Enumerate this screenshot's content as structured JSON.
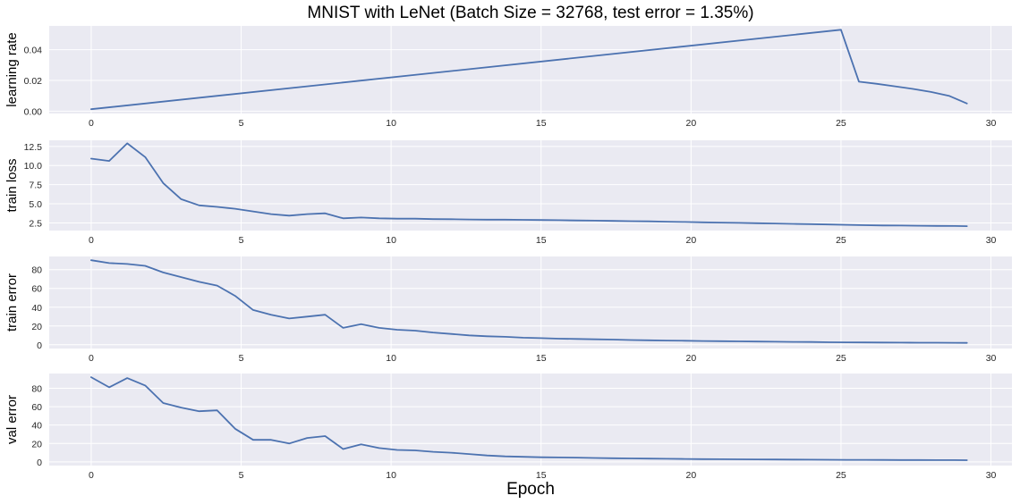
{
  "chart_data": {
    "type": "line",
    "title": "MNIST with LeNet (Batch Size = 32768, test error = 1.35%)",
    "xlabel": "Epoch",
    "xlim": [
      -1.4,
      30.7
    ],
    "xticks": [
      0,
      5,
      10,
      15,
      20,
      25,
      30
    ],
    "x_tick_labels": [
      "0",
      "5",
      "10",
      "15",
      "20",
      "25",
      "30"
    ],
    "grid": true,
    "style": "seaborn-darkgrid",
    "line_color": "#4c72b0",
    "panels": [
      {
        "ylabel": "learning rate",
        "ylim": [
          -0.0015,
          0.0555
        ],
        "yticks": [
          0.0,
          0.02,
          0.04
        ],
        "y_tick_labels": [
          "0.00",
          "0.02",
          "0.04"
        ],
        "x": [
          0,
          25,
          25.6,
          26.2,
          26.8,
          27.4,
          28.0,
          28.6,
          29.2
        ],
        "values": [
          0.0013,
          0.053,
          0.0192,
          0.0178,
          0.0162,
          0.0145,
          0.0125,
          0.01,
          0.005
        ]
      },
      {
        "ylabel": "train loss",
        "ylim": [
          1.5,
          13.3
        ],
        "yticks": [
          2.5,
          5.0,
          7.5,
          10.0,
          12.5
        ],
        "y_tick_labels": [
          "2.5",
          "5.0",
          "7.5",
          "10.0",
          "12.5"
        ],
        "x": [
          0,
          0.6,
          1.2,
          1.8,
          2.4,
          3.0,
          3.6,
          4.2,
          4.8,
          5.4,
          6.0,
          6.6,
          7.2,
          7.8,
          8.4,
          9.0,
          9.6,
          10.2,
          10.8,
          11.4,
          12.0,
          12.6,
          13.2,
          13.8,
          14.4,
          15.0,
          15.6,
          16.2,
          16.8,
          17.4,
          18.0,
          18.6,
          19.2,
          19.8,
          20.4,
          21.0,
          21.6,
          22.2,
          22.8,
          23.4,
          24.0,
          24.6,
          25.2,
          25.8,
          26.4,
          27.0,
          27.6,
          28.2,
          28.8,
          29.2
        ],
        "values": [
          10.9,
          10.6,
          12.9,
          11.1,
          7.7,
          5.6,
          4.8,
          4.6,
          4.35,
          4.0,
          3.65,
          3.45,
          3.65,
          3.75,
          3.1,
          3.2,
          3.1,
          3.05,
          3.05,
          3.0,
          2.98,
          2.95,
          2.92,
          2.92,
          2.9,
          2.88,
          2.85,
          2.82,
          2.8,
          2.76,
          2.73,
          2.7,
          2.66,
          2.62,
          2.58,
          2.54,
          2.5,
          2.46,
          2.42,
          2.38,
          2.34,
          2.3,
          2.25,
          2.2,
          2.17,
          2.15,
          2.13,
          2.11,
          2.09,
          2.07
        ]
      },
      {
        "ylabel": "train error",
        "ylim": [
          -4,
          94
        ],
        "yticks": [
          0,
          20,
          40,
          60,
          80
        ],
        "y_tick_labels": [
          "0",
          "20",
          "40",
          "60",
          "80"
        ],
        "x": [
          0,
          0.6,
          1.2,
          1.8,
          2.4,
          3.0,
          3.6,
          4.2,
          4.8,
          5.4,
          6.0,
          6.6,
          7.2,
          7.8,
          8.4,
          9.0,
          9.6,
          10.2,
          10.8,
          11.4,
          12.0,
          12.6,
          13.2,
          13.8,
          14.4,
          15.0,
          15.6,
          16.2,
          16.8,
          17.4,
          18.0,
          18.6,
          19.2,
          19.8,
          20.4,
          21.0,
          21.6,
          22.2,
          22.8,
          23.4,
          24.0,
          24.6,
          25.2,
          25.8,
          26.4,
          27.0,
          27.6,
          28.2,
          28.8,
          29.2
        ],
        "values": [
          90,
          87,
          86,
          84,
          77,
          72,
          67,
          63,
          52,
          37,
          32,
          28,
          30,
          32,
          18,
          22,
          18,
          16,
          15,
          13,
          11.5,
          10,
          9,
          8.5,
          7.5,
          7,
          6.5,
          6.2,
          5.8,
          5.5,
          5,
          4.8,
          4.5,
          4.3,
          4,
          3.8,
          3.6,
          3.4,
          3.2,
          3,
          2.9,
          2.7,
          2.6,
          2.5,
          2.4,
          2.3,
          2.2,
          2.2,
          2.1,
          2.0
        ]
      },
      {
        "ylabel": "val error",
        "ylim": [
          -4,
          96
        ],
        "yticks": [
          0,
          20,
          40,
          60,
          80
        ],
        "y_tick_labels": [
          "0",
          "20",
          "40",
          "60",
          "80"
        ],
        "x": [
          0,
          0.6,
          1.2,
          1.8,
          2.4,
          3.0,
          3.6,
          4.2,
          4.8,
          5.4,
          6.0,
          6.6,
          7.2,
          7.8,
          8.4,
          9.0,
          9.6,
          10.2,
          10.8,
          11.4,
          12.0,
          12.6,
          13.2,
          13.8,
          14.4,
          15.0,
          15.6,
          16.2,
          16.8,
          17.4,
          18.0,
          18.6,
          19.2,
          19.8,
          20.4,
          21.0,
          21.6,
          22.2,
          22.8,
          23.4,
          24.0,
          24.6,
          25.2,
          25.8,
          26.4,
          27.0,
          27.6,
          28.2,
          28.8,
          29.2
        ],
        "values": [
          92,
          81,
          91,
          83,
          64,
          59,
          55,
          56,
          36,
          24,
          24,
          20,
          26,
          28,
          14,
          19,
          15,
          13,
          12.5,
          11,
          10,
          8.5,
          7,
          6,
          5.5,
          5,
          4.8,
          4.6,
          4.3,
          4,
          3.8,
          3.6,
          3.4,
          3.2,
          3,
          2.9,
          2.8,
          2.7,
          2.6,
          2.5,
          2.4,
          2.3,
          2.2,
          2.2,
          2.1,
          2.0,
          2.0,
          1.9,
          1.9,
          1.8
        ]
      }
    ]
  }
}
